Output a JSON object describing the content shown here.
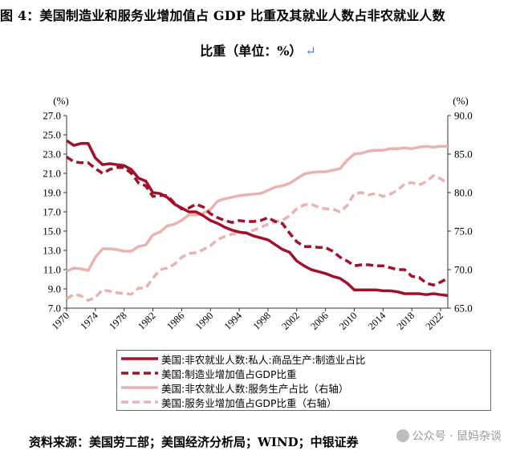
{
  "title": "图 4：美国制造业和服务业增加值占 GDP 比重及其就业人数占非农就业人数",
  "title_line2": "比重（单位：%）",
  "return_mark": "↵",
  "source": "资料来源：美国劳工部；美国经济分析局；WIND；中银证券",
  "watermark": "公众号 · 鼠妈杂谈",
  "colors": {
    "dark_red": "#A2112A",
    "light_pink": "#EBB2B2",
    "axis": "#333333",
    "text": "#000000"
  },
  "chart_data": {
    "type": "line",
    "left_axis": {
      "unit_label": "(%)",
      "min": 7.0,
      "max": 27.0,
      "ticks": [
        "27.0",
        "25.0",
        "23.0",
        "21.0",
        "19.0",
        "17.0",
        "15.0",
        "13.0",
        "11.0",
        "9.0",
        "7.0"
      ]
    },
    "right_axis": {
      "unit_label": "(%)",
      "min": 65.0,
      "max": 90.0,
      "ticks": [
        "90.0",
        "85.0",
        "80.0",
        "75.0",
        "70.0",
        "65.0"
      ]
    },
    "x_axis": {
      "min": 1970,
      "max": 2023,
      "tick_labels": [
        "1970",
        "1974",
        "1978",
        "1982",
        "1986",
        "1990",
        "1994",
        "1998",
        "2002",
        "2006",
        "2010",
        "2014",
        "2018",
        "2022"
      ]
    },
    "series": [
      {
        "name": "美国:非农就业人数:私人:商品生产:制造业占比",
        "axis": "left",
        "style": "solid",
        "color": "#A2112A",
        "x": [
          1970,
          1971,
          1972,
          1973,
          1974,
          1975,
          1976,
          1977,
          1978,
          1979,
          1980,
          1981,
          1982,
          1983,
          1984,
          1985,
          1986,
          1987,
          1988,
          1989,
          1990,
          1991,
          1992,
          1993,
          1994,
          1995,
          1996,
          1997,
          1998,
          1999,
          2000,
          2001,
          2002,
          2003,
          2004,
          2005,
          2006,
          2007,
          2008,
          2009,
          2010,
          2011,
          2012,
          2013,
          2014,
          2015,
          2016,
          2017,
          2018,
          2019,
          2020,
          2021,
          2022,
          2023
        ],
        "values": [
          24.4,
          23.9,
          24.1,
          24.1,
          22.6,
          21.9,
          22.0,
          21.9,
          21.8,
          21.4,
          20.5,
          20.2,
          19.0,
          18.9,
          18.5,
          17.8,
          17.4,
          17.0,
          17.0,
          16.6,
          16.1,
          15.8,
          15.4,
          15.1,
          14.9,
          14.8,
          14.5,
          14.3,
          14.1,
          13.6,
          13.1,
          12.8,
          11.9,
          11.4,
          11.0,
          10.8,
          10.6,
          10.3,
          10.1,
          9.6,
          8.9,
          8.9,
          8.9,
          8.9,
          8.8,
          8.8,
          8.7,
          8.5,
          8.5,
          8.5,
          8.4,
          8.5,
          8.4,
          8.3
        ]
      },
      {
        "name": "美国:制造业增加值占GDP比重",
        "axis": "left",
        "style": "dashed",
        "color": "#A2112A",
        "x": [
          1970,
          1971,
          1972,
          1973,
          1974,
          1975,
          1976,
          1977,
          1978,
          1979,
          1980,
          1981,
          1982,
          1983,
          1984,
          1985,
          1986,
          1987,
          1988,
          1989,
          1990,
          1991,
          1992,
          1993,
          1994,
          1995,
          1996,
          1997,
          1998,
          1999,
          2000,
          2001,
          2002,
          2003,
          2004,
          2005,
          2006,
          2007,
          2008,
          2009,
          2010,
          2011,
          2012,
          2013,
          2014,
          2015,
          2016,
          2017,
          2018,
          2019,
          2020,
          2021,
          2022,
          2023
        ],
        "values": [
          22.7,
          22.2,
          22.1,
          22.1,
          21.5,
          21.0,
          21.4,
          21.6,
          21.6,
          21.0,
          20.0,
          19.7,
          18.6,
          18.7,
          18.7,
          17.9,
          17.3,
          17.4,
          17.8,
          17.5,
          16.8,
          16.4,
          16.1,
          15.9,
          16.1,
          16.0,
          16.0,
          16.1,
          16.4,
          16.0,
          15.8,
          14.8,
          13.9,
          13.4,
          13.4,
          13.3,
          13.3,
          12.9,
          12.3,
          11.9,
          11.4,
          11.5,
          11.5,
          11.4,
          11.4,
          11.2,
          11.0,
          11.0,
          10.3,
          10.2,
          9.6,
          9.4,
          9.7,
          10.1
        ]
      },
      {
        "name": "美国:非农就业人数:服务生产占比（右轴）",
        "axis": "right",
        "style": "solid",
        "color": "#EBB2B2",
        "x": [
          1970,
          1971,
          1972,
          1973,
          1974,
          1975,
          1976,
          1977,
          1978,
          1979,
          1980,
          1981,
          1982,
          1983,
          1984,
          1985,
          1986,
          1987,
          1988,
          1989,
          1990,
          1991,
          1992,
          1993,
          1994,
          1995,
          1996,
          1997,
          1998,
          1999,
          2000,
          2001,
          2002,
          2003,
          2004,
          2005,
          2006,
          2007,
          2008,
          2009,
          2010,
          2011,
          2012,
          2013,
          2014,
          2015,
          2016,
          2017,
          2018,
          2019,
          2020,
          2021,
          2022,
          2023
        ],
        "values": [
          69.8,
          70.2,
          70.1,
          69.9,
          71.6,
          72.7,
          72.7,
          72.6,
          72.4,
          72.4,
          73.0,
          73.2,
          74.5,
          74.9,
          75.7,
          75.9,
          76.4,
          77.1,
          77.1,
          77.3,
          77.8,
          78.9,
          79.2,
          79.4,
          79.6,
          79.7,
          79.8,
          79.9,
          80.3,
          80.7,
          80.9,
          81.2,
          81.8,
          82.4,
          82.6,
          82.7,
          82.7,
          82.9,
          83.1,
          84.2,
          85.0,
          85.1,
          85.4,
          85.5,
          85.5,
          85.7,
          85.7,
          85.8,
          85.7,
          85.9,
          86.0,
          85.9,
          86.0,
          86.0
        ]
      },
      {
        "name": "美国:服务业增加值占GDP比重（右轴）",
        "axis": "right",
        "style": "dashed",
        "color": "#EBB2B2",
        "x": [
          1970,
          1971,
          1972,
          1973,
          1974,
          1975,
          1976,
          1977,
          1978,
          1979,
          1980,
          1981,
          1982,
          1983,
          1984,
          1985,
          1986,
          1987,
          1988,
          1989,
          1990,
          1991,
          1992,
          1993,
          1994,
          1995,
          1996,
          1997,
          1998,
          1999,
          2000,
          2001,
          2002,
          2003,
          2004,
          2005,
          2006,
          2007,
          2008,
          2009,
          2010,
          2011,
          2012,
          2013,
          2014,
          2015,
          2016,
          2017,
          2018,
          2019,
          2020,
          2021,
          2022,
          2023
        ],
        "values": [
          66.2,
          66.8,
          66.6,
          66.0,
          66.4,
          67.4,
          67.2,
          67.0,
          66.9,
          66.8,
          67.6,
          67.6,
          68.9,
          70.0,
          70.2,
          70.7,
          71.6,
          72.1,
          72.2,
          72.6,
          73.1,
          73.9,
          74.3,
          74.6,
          74.7,
          74.8,
          75.1,
          75.5,
          75.9,
          76.2,
          76.4,
          77.0,
          77.9,
          78.4,
          78.5,
          78.1,
          77.9,
          77.9,
          77.5,
          78.3,
          79.9,
          80.0,
          79.7,
          79.9,
          79.5,
          79.8,
          80.3,
          81.1,
          81.3,
          81.0,
          81.4,
          82.2,
          81.8,
          81.2
        ]
      }
    ]
  }
}
